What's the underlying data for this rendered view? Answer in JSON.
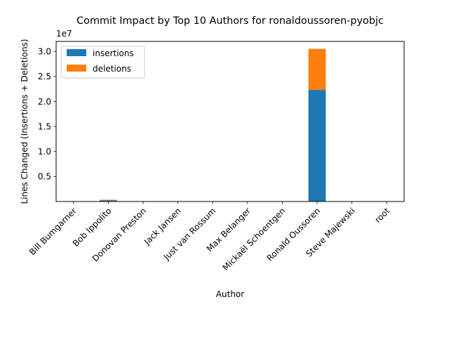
{
  "chart_data": {
    "type": "bar",
    "stacked": true,
    "title": "Commit Impact by Top 10 Authors for ronaldoussoren-pyobjc",
    "xlabel": "Author",
    "ylabel": "Lines Changed (Insertions + Deletions)",
    "y_offset_label": "1e7",
    "y_scale_factor": 10000000,
    "ylim": [
      0,
      31990000
    ],
    "yticks": [
      5000000,
      10000000,
      15000000,
      20000000,
      25000000,
      30000000
    ],
    "ytick_labels": [
      "0.5",
      "1.0",
      "1.5",
      "2.0",
      "2.5",
      "3.0"
    ],
    "categories": [
      "Bill Bumgarner",
      "Bob Ippolito",
      "Donovan Preston",
      "Jack Jansen",
      "Just van Rossum",
      "Max Belanger",
      "Mickaël Schoentgen",
      "Ronald Oussoren",
      "Steve Majewski",
      "root"
    ],
    "series": [
      {
        "name": "insertions",
        "color": "#1f77b4",
        "values": [
          30000,
          250000,
          3000,
          10000,
          4000,
          2000,
          1000,
          22300000,
          5000,
          2000
        ]
      },
      {
        "name": "deletions",
        "color": "#ff7f0e",
        "values": [
          10000,
          100000,
          1000,
          5000,
          2000,
          1000,
          500,
          8200000,
          2000,
          1000
        ]
      }
    ],
    "legend_position": "upper-left",
    "grid": false
  }
}
